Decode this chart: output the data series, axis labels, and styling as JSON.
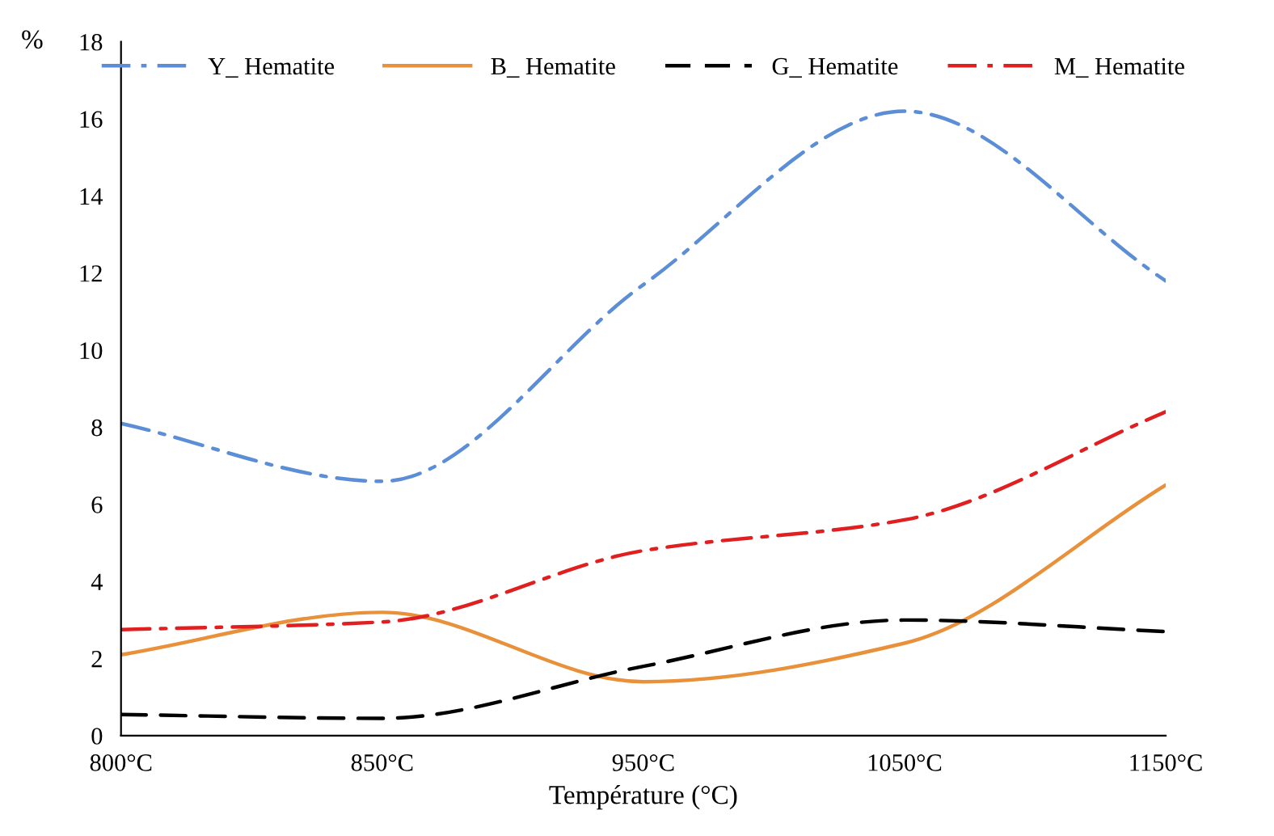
{
  "chart_data": {
    "type": "line",
    "xlabel": "Température (°C)",
    "ylabel": "%",
    "categories": [
      "800°C",
      "850°C",
      "950°C",
      "1050°C",
      "1150°C"
    ],
    "series": [
      {
        "name": "Y_ Hematite",
        "color": "#5b8ed6",
        "line_style": "dashdot",
        "values": [
          8.1,
          6.6,
          11.7,
          16.2,
          11.8
        ]
      },
      {
        "name": "B_ Hematite",
        "color": "#e8913a",
        "line_style": "solid",
        "values": [
          2.1,
          3.2,
          1.4,
          2.4,
          6.5
        ]
      },
      {
        "name": "G_ Hematite",
        "color": "#000000",
        "line_style": "dashed",
        "values": [
          0.55,
          0.45,
          1.8,
          3.0,
          2.7
        ]
      },
      {
        "name": "M_ Hematite",
        "color": "#e02020",
        "line_style": "dashdot",
        "values": [
          2.75,
          2.95,
          4.8,
          5.6,
          8.4
        ]
      }
    ],
    "ylim": [
      0,
      18
    ],
    "yticks": [
      0,
      2,
      4,
      6,
      8,
      10,
      12,
      14,
      16,
      18
    ],
    "grid": false,
    "legend": "top",
    "marker": "none"
  }
}
